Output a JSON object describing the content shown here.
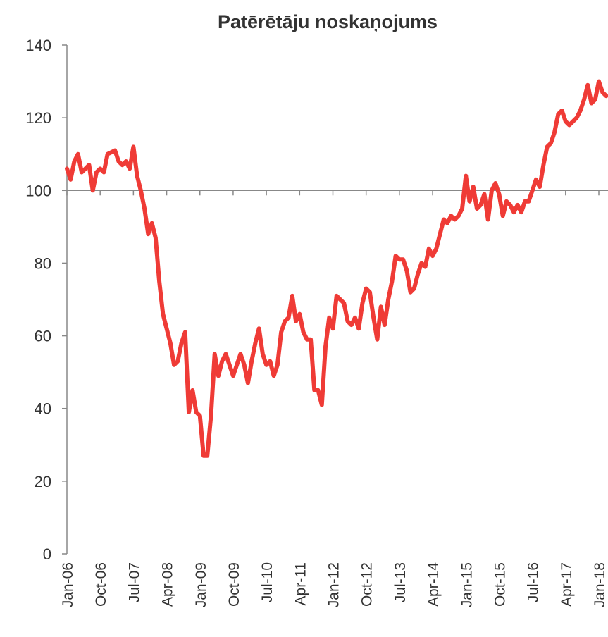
{
  "chart_data": {
    "type": "line",
    "title": "Patērētāju noskaņojums",
    "categories": [
      "Jan-06",
      null,
      null,
      null,
      null,
      null,
      null,
      null,
      null,
      "Oct-06",
      null,
      null,
      null,
      null,
      null,
      null,
      null,
      null,
      "Jul-07",
      null,
      null,
      null,
      null,
      null,
      null,
      null,
      null,
      "Apr-08",
      null,
      null,
      null,
      null,
      null,
      null,
      null,
      null,
      "Jan-09",
      null,
      null,
      null,
      null,
      null,
      null,
      null,
      null,
      "Oct-09",
      null,
      null,
      null,
      null,
      null,
      null,
      null,
      null,
      "Jul-10",
      null,
      null,
      null,
      null,
      null,
      null,
      null,
      null,
      "Apr-11",
      null,
      null,
      null,
      null,
      null,
      null,
      null,
      null,
      "Jan-12",
      null,
      null,
      null,
      null,
      null,
      null,
      null,
      null,
      "Oct-12",
      null,
      null,
      null,
      null,
      null,
      null,
      null,
      null,
      "Jul-13",
      null,
      null,
      null,
      null,
      null,
      null,
      null,
      null,
      "Apr-14",
      null,
      null,
      null,
      null,
      null,
      null,
      null,
      null,
      "Jan-15",
      null,
      null,
      null,
      null,
      null,
      null,
      null,
      null,
      "Oct-15",
      null,
      null,
      null,
      null,
      null,
      null,
      null,
      null,
      "Jul-16",
      null,
      null,
      null,
      null,
      null,
      null,
      null,
      null,
      "Apr-17",
      null,
      null,
      null,
      null,
      null,
      null,
      null,
      null,
      "Jan-18",
      null,
      null
    ],
    "values": [
      106,
      103,
      108,
      110,
      105,
      106,
      107,
      100,
      105,
      106,
      105,
      110,
      110.5,
      111,
      108,
      107,
      108,
      106,
      112,
      104,
      100,
      95,
      88,
      91,
      87,
      75,
      66,
      62,
      58,
      52,
      53,
      58,
      61,
      39,
      45,
      39,
      38,
      27,
      27,
      38,
      55,
      49,
      53,
      55,
      52,
      49,
      52,
      55,
      52,
      47,
      53,
      58,
      62,
      55,
      52,
      53,
      49,
      52,
      61,
      64,
      65,
      71,
      64,
      66,
      61,
      59,
      59,
      45,
      45,
      41,
      57,
      65,
      62,
      71,
      70,
      69,
      64,
      63,
      65,
      62,
      69,
      73,
      72,
      65,
      59,
      68,
      63,
      70,
      75,
      82,
      81,
      81,
      78,
      72,
      73,
      77,
      80,
      79,
      84,
      82,
      84,
      88,
      92,
      91,
      93,
      92,
      93,
      95,
      104,
      97,
      101,
      95,
      96,
      99,
      92,
      100,
      102,
      99,
      93,
      97,
      96,
      94,
      96,
      94,
      97,
      97,
      100,
      103,
      101,
      107,
      112,
      113,
      116,
      121,
      122,
      119,
      118,
      119,
      120,
      122,
      125,
      129,
      124,
      125,
      130,
      127,
      126
    ],
    "color": "#ef3b36",
    "ylim": [
      0,
      140
    ],
    "yticks": [
      0,
      20,
      40,
      60,
      80,
      100,
      120,
      140
    ],
    "xaxis_crosses_at": 100
  }
}
